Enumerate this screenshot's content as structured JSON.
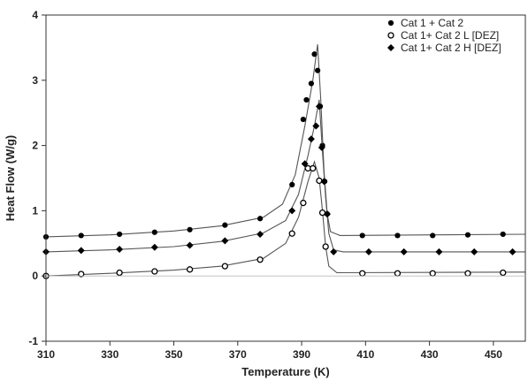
{
  "chart_data": {
    "type": "scatter",
    "title": "",
    "xlabel": "Temperature (K)",
    "ylabel": "Heat Flow (W/g)",
    "xlim": [
      310,
      460
    ],
    "ylim": [
      -1,
      4
    ],
    "x_ticks": [
      310,
      330,
      350,
      370,
      390,
      410,
      430,
      450
    ],
    "y_ticks": [
      -1,
      0,
      1,
      2,
      3,
      4
    ],
    "grid": false,
    "legend_position": "top-right",
    "series": [
      {
        "name": "Cat 1 + Cat 2",
        "marker": "filled-circle",
        "color": "#000000",
        "points": [
          [
            310,
            0.6
          ],
          [
            321,
            0.62
          ],
          [
            333,
            0.64
          ],
          [
            344,
            0.67
          ],
          [
            355,
            0.71
          ],
          [
            366,
            0.78
          ],
          [
            377,
            0.88
          ],
          [
            387,
            1.4
          ],
          [
            390.5,
            2.4
          ],
          [
            391.5,
            2.7
          ],
          [
            393,
            2.95
          ],
          [
            394,
            3.4
          ],
          [
            395,
            3.15
          ],
          [
            395.8,
            2.6
          ],
          [
            396.5,
            2.0
          ],
          [
            397.2,
            1.45
          ],
          [
            398,
            0.95
          ],
          [
            409,
            0.62
          ],
          [
            420,
            0.62
          ],
          [
            431,
            0.62
          ],
          [
            442,
            0.63
          ],
          [
            453,
            0.64
          ]
        ],
        "curve": [
          [
            310,
            0.6
          ],
          [
            330,
            0.63
          ],
          [
            350,
            0.69
          ],
          [
            365,
            0.77
          ],
          [
            378,
            0.9
          ],
          [
            384,
            1.1
          ],
          [
            388,
            1.55
          ],
          [
            391,
            2.3
          ],
          [
            393.5,
            3.0
          ],
          [
            395,
            3.55
          ],
          [
            396,
            2.7
          ],
          [
            397,
            1.6
          ],
          [
            398,
            0.95
          ],
          [
            399,
            0.68
          ],
          [
            402,
            0.62
          ],
          [
            460,
            0.64
          ]
        ]
      },
      {
        "name": "Cat 1+ Cat 2 L [DEZ]",
        "marker": "open-circle",
        "color": "#000000",
        "points": [
          [
            310,
            0.0
          ],
          [
            321,
            0.03
          ],
          [
            333,
            0.05
          ],
          [
            344,
            0.07
          ],
          [
            355,
            0.1
          ],
          [
            366,
            0.15
          ],
          [
            377,
            0.25
          ],
          [
            387,
            0.65
          ],
          [
            390.5,
            1.12
          ],
          [
            392,
            1.65
          ],
          [
            393.5,
            1.65
          ],
          [
            395.5,
            1.46
          ],
          [
            396.5,
            0.97
          ],
          [
            397.5,
            0.45
          ],
          [
            409,
            0.04
          ],
          [
            420,
            0.04
          ],
          [
            431,
            0.04
          ],
          [
            442,
            0.04
          ],
          [
            453,
            0.05
          ]
        ],
        "curve": [
          [
            310,
            0.0
          ],
          [
            330,
            0.04
          ],
          [
            350,
            0.09
          ],
          [
            365,
            0.15
          ],
          [
            378,
            0.27
          ],
          [
            385,
            0.5
          ],
          [
            389,
            0.9
          ],
          [
            392,
            1.45
          ],
          [
            394,
            1.75
          ],
          [
            395.5,
            1.5
          ],
          [
            396.5,
            1.0
          ],
          [
            397.5,
            0.45
          ],
          [
            398.5,
            0.15
          ],
          [
            401,
            0.05
          ],
          [
            460,
            0.06
          ]
        ]
      },
      {
        "name": "Cat 1+ Cat 2 H [DEZ]",
        "marker": "filled-diamond",
        "color": "#000000",
        "points": [
          [
            310,
            0.37
          ],
          [
            321,
            0.39
          ],
          [
            333,
            0.41
          ],
          [
            344,
            0.44
          ],
          [
            355,
            0.47
          ],
          [
            366,
            0.54
          ],
          [
            377,
            0.64
          ],
          [
            387,
            1.0
          ],
          [
            391,
            1.72
          ],
          [
            393,
            2.1
          ],
          [
            394.5,
            2.3
          ],
          [
            395.5,
            2.6
          ],
          [
            396.3,
            1.97
          ],
          [
            397,
            1.45
          ],
          [
            398,
            0.95
          ],
          [
            400,
            0.37
          ],
          [
            411,
            0.37
          ],
          [
            422,
            0.37
          ],
          [
            433,
            0.37
          ],
          [
            444,
            0.37
          ],
          [
            456,
            0.37
          ]
        ],
        "curve": [
          [
            310,
            0.37
          ],
          [
            330,
            0.4
          ],
          [
            350,
            0.45
          ],
          [
            365,
            0.53
          ],
          [
            378,
            0.66
          ],
          [
            385,
            0.85
          ],
          [
            389,
            1.25
          ],
          [
            392,
            1.85
          ],
          [
            394,
            2.3
          ],
          [
            395.5,
            2.7
          ],
          [
            396.5,
            1.9
          ],
          [
            397.5,
            1.2
          ],
          [
            398.5,
            0.65
          ],
          [
            400,
            0.4
          ],
          [
            403,
            0.37
          ],
          [
            460,
            0.37
          ]
        ]
      }
    ]
  }
}
